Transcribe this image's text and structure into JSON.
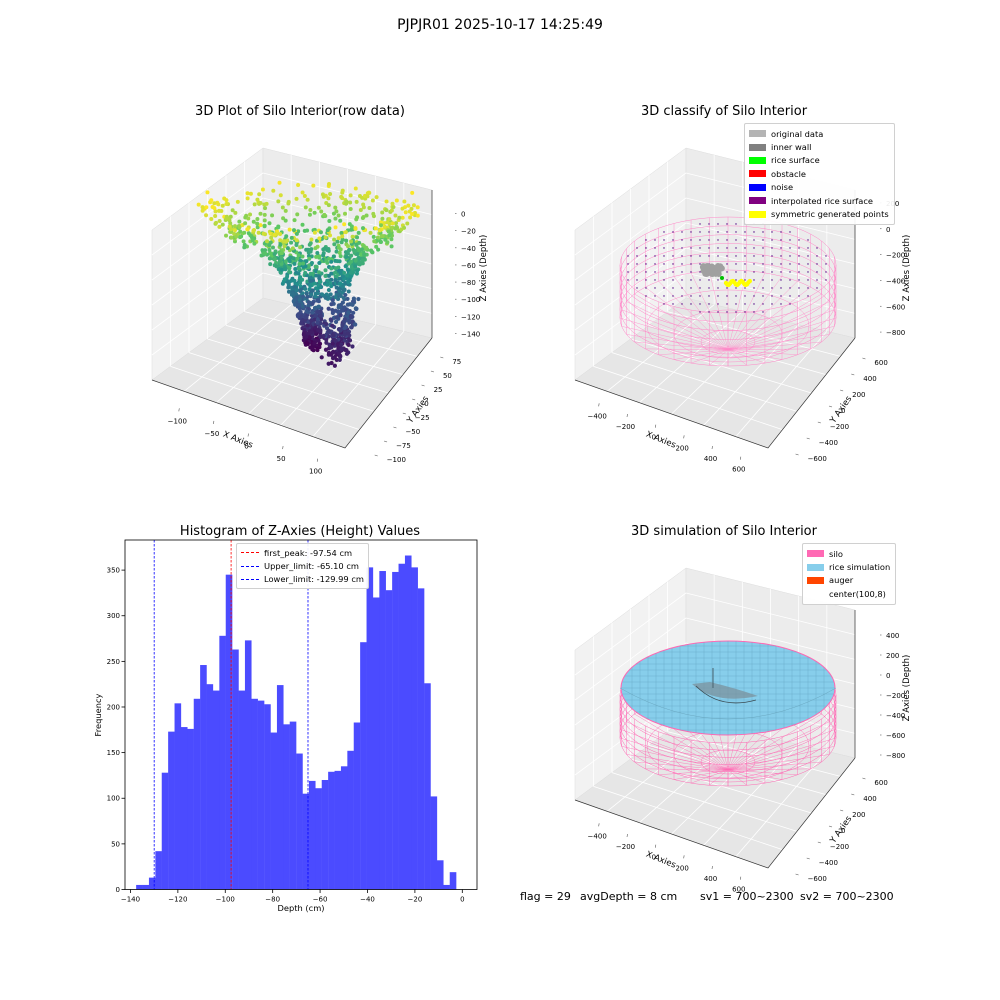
{
  "figure_title": "PJPJR01 2025-10-17 14:25:49",
  "status_bar": {
    "flag": "flag = 29",
    "avg_depth": "avgDepth = 8 cm",
    "sv1": "sv1 = 700~2300",
    "sv2": "sv2 = 700~2300"
  },
  "chart_data": [
    {
      "type": "scatter",
      "title": "3D Plot of Silo Interior(row data)",
      "xlabel": "X Axies",
      "ylabel": "Y Axies",
      "zlabel": "Z Axies (Depth)",
      "xticks": [
        "−100",
        "−50",
        "0",
        "50",
        "100"
      ],
      "yticks": [
        "75",
        "50",
        "25",
        "0",
        "−25",
        "−50",
        "−75",
        "−100"
      ],
      "zticks": [
        "0",
        "−20",
        "−40",
        "−60",
        "−80",
        "−100",
        "−120",
        "−140"
      ],
      "xlim": [
        -120,
        110
      ],
      "ylim": [
        -110,
        80
      ],
      "zlim": [
        -145,
        5
      ],
      "colormap": [
        "#440154",
        "#3b528b",
        "#21918c",
        "#5ec962",
        "#fde725"
      ],
      "grid": true
    },
    {
      "type": "scatter",
      "title": "3D classify of Silo Interior",
      "xlabel": "X Axies",
      "ylabel": "Y Axies",
      "zlabel": "Z Axies (Depth)",
      "xticks": [
        "−400",
        "−200",
        "0",
        "200",
        "400",
        "600"
      ],
      "yticks": [
        "600",
        "400",
        "200",
        "0",
        "−200",
        "−400",
        "−600"
      ],
      "zticks": [
        "200",
        "0",
        "−200",
        "−400",
        "−600",
        "−800"
      ],
      "legend_position": "top-right",
      "legend": [
        {
          "label": "original data",
          "color": "#b4b4b4"
        },
        {
          "label": "inner wall",
          "color": "#808080"
        },
        {
          "label": "rice surface",
          "color": "#00ff00"
        },
        {
          "label": "obstacle",
          "color": "#ff0000"
        },
        {
          "label": "noise",
          "color": "#0000ff"
        },
        {
          "label": "interpolated rice surface",
          "color": "#800080"
        },
        {
          "label": "symmetric generated points",
          "color": "#ffff00"
        }
      ],
      "wireframe_color": "#ff88c8",
      "grid": true
    },
    {
      "type": "bar",
      "title": "Histogram of Z-Axies (Height) Values",
      "xlabel": "Depth (cm)",
      "ylabel": "Frequency",
      "xlim": [
        -142.3,
        6.2
      ],
      "ylim": [
        0,
        383
      ],
      "xticks": [
        -140,
        -120,
        -100,
        -80,
        -60,
        -40,
        -20,
        0
      ],
      "xtick_labels": [
        "−140",
        "−120",
        "−100",
        "−80",
        "−60",
        "−40",
        "−20",
        "0"
      ],
      "yticks": [
        0,
        50,
        100,
        150,
        200,
        250,
        300,
        350
      ],
      "bin_start": -137.6,
      "bin_width": 2.7,
      "values": [
        5,
        5,
        13,
        42,
        128,
        173,
        204,
        178,
        176,
        209,
        246,
        225,
        218,
        278,
        345,
        263,
        218,
        273,
        209,
        207,
        203,
        172,
        224,
        181,
        184,
        149,
        105,
        119,
        111,
        120,
        129,
        130,
        135,
        152,
        183,
        271,
        353,
        320,
        349,
        328,
        348,
        357,
        366,
        353,
        330,
        226,
        102,
        32,
        5,
        19
      ],
      "bar_color": "#4b4bff",
      "lines": [
        {
          "x": -97.54,
          "color": "#ff0000",
          "label": "first_peak: -97.54 cm"
        },
        {
          "x": -65.1,
          "color": "#0000ff",
          "label": "Upper_limit: -65.10 cm"
        },
        {
          "x": -129.99,
          "color": "#0000ff",
          "label": "Lower_limit: -129.99 cm"
        }
      ],
      "legend_position": "upper-center"
    },
    {
      "type": "area",
      "title": "3D simulation of Silo Interior",
      "xlabel": "X Axies",
      "ylabel": "Y Axies",
      "zlabel": "Z Axies (Depth)",
      "xticks": [
        "−400",
        "−200",
        "0",
        "200",
        "400",
        "600"
      ],
      "yticks": [
        "600",
        "400",
        "200",
        "0",
        "−200",
        "−400",
        "−600"
      ],
      "zticks": [
        "400",
        "200",
        "0",
        "−200",
        "−400",
        "−600",
        "−800"
      ],
      "legend_position": "top-right",
      "legend": [
        {
          "label": "silo",
          "color": "#ff69b4"
        },
        {
          "label": "rice simulation",
          "color": "#87ceeb"
        },
        {
          "label": "auger",
          "color": "#ff4500"
        },
        {
          "label": "center(100,8)",
          "color": ""
        }
      ],
      "grid": true
    }
  ]
}
